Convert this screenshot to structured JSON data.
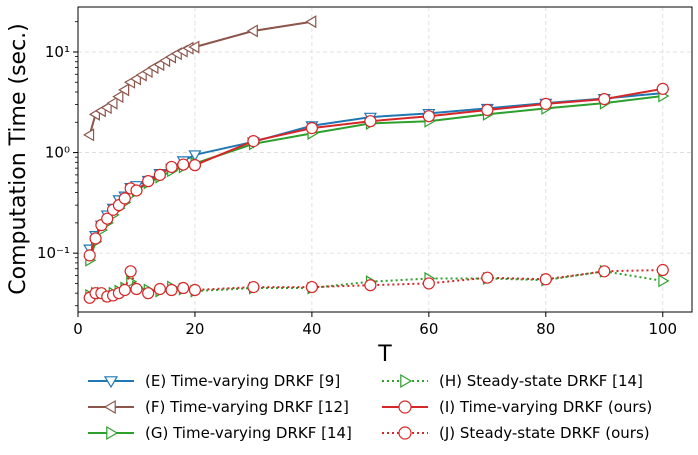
{
  "chart_data": {
    "type": "line",
    "title": "",
    "xlabel": "T",
    "ylabel": "Computation Time (sec.)",
    "xlim": [
      0,
      105
    ],
    "ylim": [
      0.026,
      28
    ],
    "yscale": "log",
    "grid": true,
    "legend_position": "bottom, two columns",
    "x_ticks": [
      0,
      20,
      40,
      60,
      80,
      100
    ],
    "x_tick_labels": [
      "0",
      "20",
      "40",
      "60",
      "80",
      "100"
    ],
    "y_ticks": [
      0.1,
      1,
      10
    ],
    "y_tick_labels": [
      "10⁻¹",
      "10⁰",
      "10¹"
    ],
    "series": [
      {
        "name": "(E) Time-varying DRKF [9]",
        "color": "#1f77b4",
        "marker": "triangle-down",
        "linestyle": "solid",
        "x": [
          2,
          3,
          4,
          5,
          6,
          7,
          8,
          9,
          10,
          12,
          14,
          16,
          18,
          20,
          30,
          40,
          50,
          60,
          70,
          80,
          90,
          100
        ],
        "y": [
          0.11,
          0.15,
          0.19,
          0.24,
          0.28,
          0.34,
          0.37,
          0.45,
          0.47,
          0.53,
          0.62,
          0.7,
          0.83,
          0.95,
          1.28,
          1.85,
          2.25,
          2.45,
          2.75,
          3.1,
          3.45,
          3.9
        ]
      },
      {
        "name": "(F) Time-varying DRKF [12]",
        "color": "#8c564b",
        "marker": "triangle-left",
        "linestyle": "solid",
        "x": [
          2,
          3,
          4,
          5,
          6,
          7,
          8,
          9,
          10,
          11,
          12,
          13,
          14,
          15,
          16,
          17,
          18,
          19,
          20,
          30,
          40
        ],
        "y": [
          1.5,
          2.4,
          2.6,
          2.8,
          3.1,
          3.6,
          4.2,
          5.0,
          5.4,
          5.9,
          6.4,
          7.0,
          7.5,
          8.2,
          8.9,
          9.6,
          10.2,
          10.9,
          11.2,
          16.2,
          20.0
        ]
      },
      {
        "name": "(G) Time-varying DRKF [14]",
        "color": "#2ca02c",
        "marker": "triangle-right",
        "linestyle": "solid",
        "x": [
          2,
          3,
          4,
          5,
          6,
          7,
          8,
          9,
          10,
          12,
          14,
          16,
          18,
          20,
          30,
          40,
          50,
          60,
          70,
          80,
          90,
          100
        ],
        "y": [
          0.085,
          0.13,
          0.17,
          0.2,
          0.24,
          0.28,
          0.32,
          0.38,
          0.42,
          0.5,
          0.57,
          0.66,
          0.72,
          0.78,
          1.22,
          1.55,
          1.95,
          2.05,
          2.4,
          2.75,
          3.1,
          3.65
        ]
      },
      {
        "name": "(H) Steady-state DRKF [14]",
        "color": "#2ca02c",
        "marker": "triangle-right",
        "linestyle": "dotted",
        "x": [
          2,
          3,
          4,
          5,
          6,
          7,
          8,
          9,
          10,
          12,
          14,
          16,
          18,
          20,
          30,
          40,
          50,
          60,
          70,
          80,
          90,
          100
        ],
        "y": [
          0.038,
          0.04,
          0.04,
          0.038,
          0.04,
          0.042,
          0.045,
          0.052,
          0.046,
          0.043,
          0.042,
          0.046,
          0.044,
          0.042,
          0.045,
          0.045,
          0.052,
          0.056,
          0.056,
          0.054,
          0.066,
          0.053
        ]
      },
      {
        "name": "(I) Time-varying DRKF (ours)",
        "color": "#d62728",
        "marker": "circle",
        "linestyle": "solid",
        "x": [
          2,
          3,
          4,
          5,
          6,
          7,
          8,
          9,
          10,
          12,
          14,
          16,
          18,
          20,
          30,
          40,
          50,
          60,
          70,
          80,
          90,
          100
        ],
        "y": [
          0.095,
          0.14,
          0.19,
          0.22,
          0.27,
          0.3,
          0.35,
          0.44,
          0.42,
          0.52,
          0.6,
          0.72,
          0.76,
          0.75,
          1.3,
          1.75,
          2.05,
          2.3,
          2.65,
          3.05,
          3.4,
          4.3
        ]
      },
      {
        "name": "(J) Steady-state DRKF (ours)",
        "color": "#d62728",
        "marker": "circle",
        "linestyle": "dotted",
        "x": [
          2,
          3,
          4,
          5,
          6,
          7,
          8,
          9,
          10,
          12,
          14,
          16,
          18,
          20,
          30,
          40,
          50,
          60,
          70,
          80,
          90,
          100
        ],
        "y": [
          0.036,
          0.04,
          0.04,
          0.037,
          0.038,
          0.04,
          0.043,
          0.066,
          0.044,
          0.04,
          0.044,
          0.043,
          0.045,
          0.043,
          0.046,
          0.046,
          0.048,
          0.05,
          0.057,
          0.055,
          0.066,
          0.068
        ]
      }
    ]
  }
}
